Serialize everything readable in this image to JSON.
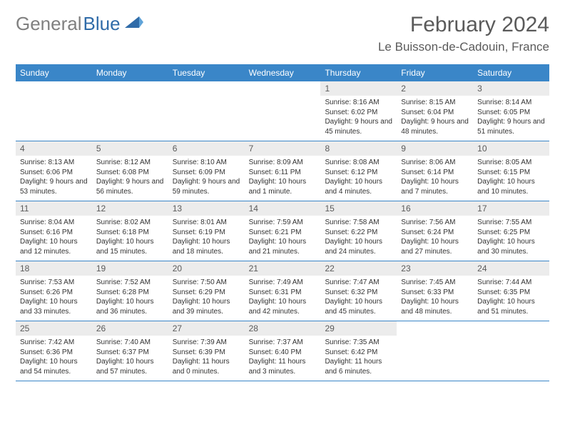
{
  "brand": {
    "part1": "General",
    "part2": "Blue"
  },
  "title": "February 2024",
  "location": "Le Buisson-de-Cadouin, France",
  "colors": {
    "header_bg": "#3a86c8",
    "daynum_bg": "#ececec",
    "divider": "#3a86c8",
    "text": "#333333",
    "title_text": "#5a5a5a",
    "logo_gray": "#808080",
    "logo_blue": "#2f6ba8",
    "background": "#ffffff"
  },
  "typography": {
    "title_fontsize": 30,
    "location_fontsize": 17,
    "dayheader_fontsize": 12,
    "daynum_fontsize": 12,
    "detail_fontsize": 10
  },
  "dayheaders": [
    "Sunday",
    "Monday",
    "Tuesday",
    "Wednesday",
    "Thursday",
    "Friday",
    "Saturday"
  ],
  "weeks": [
    [
      {
        "num": "",
        "sunrise": "",
        "sunset": "",
        "daylight": ""
      },
      {
        "num": "",
        "sunrise": "",
        "sunset": "",
        "daylight": ""
      },
      {
        "num": "",
        "sunrise": "",
        "sunset": "",
        "daylight": ""
      },
      {
        "num": "",
        "sunrise": "",
        "sunset": "",
        "daylight": ""
      },
      {
        "num": "1",
        "sunrise": "Sunrise: 8:16 AM",
        "sunset": "Sunset: 6:02 PM",
        "daylight": "Daylight: 9 hours and 45 minutes."
      },
      {
        "num": "2",
        "sunrise": "Sunrise: 8:15 AM",
        "sunset": "Sunset: 6:04 PM",
        "daylight": "Daylight: 9 hours and 48 minutes."
      },
      {
        "num": "3",
        "sunrise": "Sunrise: 8:14 AM",
        "sunset": "Sunset: 6:05 PM",
        "daylight": "Daylight: 9 hours and 51 minutes."
      }
    ],
    [
      {
        "num": "4",
        "sunrise": "Sunrise: 8:13 AM",
        "sunset": "Sunset: 6:06 PM",
        "daylight": "Daylight: 9 hours and 53 minutes."
      },
      {
        "num": "5",
        "sunrise": "Sunrise: 8:12 AM",
        "sunset": "Sunset: 6:08 PM",
        "daylight": "Daylight: 9 hours and 56 minutes."
      },
      {
        "num": "6",
        "sunrise": "Sunrise: 8:10 AM",
        "sunset": "Sunset: 6:09 PM",
        "daylight": "Daylight: 9 hours and 59 minutes."
      },
      {
        "num": "7",
        "sunrise": "Sunrise: 8:09 AM",
        "sunset": "Sunset: 6:11 PM",
        "daylight": "Daylight: 10 hours and 1 minute."
      },
      {
        "num": "8",
        "sunrise": "Sunrise: 8:08 AM",
        "sunset": "Sunset: 6:12 PM",
        "daylight": "Daylight: 10 hours and 4 minutes."
      },
      {
        "num": "9",
        "sunrise": "Sunrise: 8:06 AM",
        "sunset": "Sunset: 6:14 PM",
        "daylight": "Daylight: 10 hours and 7 minutes."
      },
      {
        "num": "10",
        "sunrise": "Sunrise: 8:05 AM",
        "sunset": "Sunset: 6:15 PM",
        "daylight": "Daylight: 10 hours and 10 minutes."
      }
    ],
    [
      {
        "num": "11",
        "sunrise": "Sunrise: 8:04 AM",
        "sunset": "Sunset: 6:16 PM",
        "daylight": "Daylight: 10 hours and 12 minutes."
      },
      {
        "num": "12",
        "sunrise": "Sunrise: 8:02 AM",
        "sunset": "Sunset: 6:18 PM",
        "daylight": "Daylight: 10 hours and 15 minutes."
      },
      {
        "num": "13",
        "sunrise": "Sunrise: 8:01 AM",
        "sunset": "Sunset: 6:19 PM",
        "daylight": "Daylight: 10 hours and 18 minutes."
      },
      {
        "num": "14",
        "sunrise": "Sunrise: 7:59 AM",
        "sunset": "Sunset: 6:21 PM",
        "daylight": "Daylight: 10 hours and 21 minutes."
      },
      {
        "num": "15",
        "sunrise": "Sunrise: 7:58 AM",
        "sunset": "Sunset: 6:22 PM",
        "daylight": "Daylight: 10 hours and 24 minutes."
      },
      {
        "num": "16",
        "sunrise": "Sunrise: 7:56 AM",
        "sunset": "Sunset: 6:24 PM",
        "daylight": "Daylight: 10 hours and 27 minutes."
      },
      {
        "num": "17",
        "sunrise": "Sunrise: 7:55 AM",
        "sunset": "Sunset: 6:25 PM",
        "daylight": "Daylight: 10 hours and 30 minutes."
      }
    ],
    [
      {
        "num": "18",
        "sunrise": "Sunrise: 7:53 AM",
        "sunset": "Sunset: 6:26 PM",
        "daylight": "Daylight: 10 hours and 33 minutes."
      },
      {
        "num": "19",
        "sunrise": "Sunrise: 7:52 AM",
        "sunset": "Sunset: 6:28 PM",
        "daylight": "Daylight: 10 hours and 36 minutes."
      },
      {
        "num": "20",
        "sunrise": "Sunrise: 7:50 AM",
        "sunset": "Sunset: 6:29 PM",
        "daylight": "Daylight: 10 hours and 39 minutes."
      },
      {
        "num": "21",
        "sunrise": "Sunrise: 7:49 AM",
        "sunset": "Sunset: 6:31 PM",
        "daylight": "Daylight: 10 hours and 42 minutes."
      },
      {
        "num": "22",
        "sunrise": "Sunrise: 7:47 AM",
        "sunset": "Sunset: 6:32 PM",
        "daylight": "Daylight: 10 hours and 45 minutes."
      },
      {
        "num": "23",
        "sunrise": "Sunrise: 7:45 AM",
        "sunset": "Sunset: 6:33 PM",
        "daylight": "Daylight: 10 hours and 48 minutes."
      },
      {
        "num": "24",
        "sunrise": "Sunrise: 7:44 AM",
        "sunset": "Sunset: 6:35 PM",
        "daylight": "Daylight: 10 hours and 51 minutes."
      }
    ],
    [
      {
        "num": "25",
        "sunrise": "Sunrise: 7:42 AM",
        "sunset": "Sunset: 6:36 PM",
        "daylight": "Daylight: 10 hours and 54 minutes."
      },
      {
        "num": "26",
        "sunrise": "Sunrise: 7:40 AM",
        "sunset": "Sunset: 6:37 PM",
        "daylight": "Daylight: 10 hours and 57 minutes."
      },
      {
        "num": "27",
        "sunrise": "Sunrise: 7:39 AM",
        "sunset": "Sunset: 6:39 PM",
        "daylight": "Daylight: 11 hours and 0 minutes."
      },
      {
        "num": "28",
        "sunrise": "Sunrise: 7:37 AM",
        "sunset": "Sunset: 6:40 PM",
        "daylight": "Daylight: 11 hours and 3 minutes."
      },
      {
        "num": "29",
        "sunrise": "Sunrise: 7:35 AM",
        "sunset": "Sunset: 6:42 PM",
        "daylight": "Daylight: 11 hours and 6 minutes."
      },
      {
        "num": "",
        "sunrise": "",
        "sunset": "",
        "daylight": ""
      },
      {
        "num": "",
        "sunrise": "",
        "sunset": "",
        "daylight": ""
      }
    ]
  ]
}
